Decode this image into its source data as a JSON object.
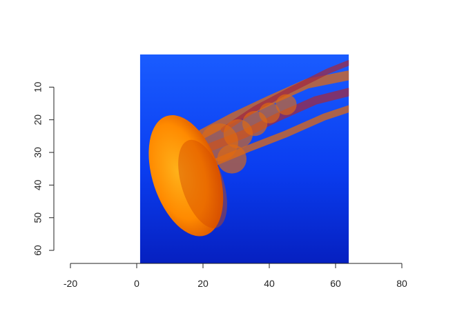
{
  "chart_data": {
    "type": "image",
    "image_description": "jellyfish",
    "xlim": [
      -20,
      80
    ],
    "ylim": [
      64,
      0
    ],
    "image_extent": {
      "x": [
        1,
        64
      ],
      "y": [
        0,
        64
      ]
    },
    "x_ticks": [
      -20,
      0,
      20,
      40,
      60,
      80
    ],
    "x_tick_labels": [
      "-20",
      "0",
      "20",
      "40",
      "60",
      "80"
    ],
    "y_ticks": [
      10,
      20,
      30,
      40,
      50,
      60
    ],
    "y_tick_labels": [
      "10",
      "20",
      "30",
      "40",
      "50",
      "60"
    ],
    "y_axis_reversed": true,
    "title": "",
    "xlabel": "",
    "ylabel": "",
    "colors": {
      "water_top": "#1a5cff",
      "water_mid": "#0a3df0",
      "water_bottom": "#0620c0",
      "bell_light": "#ffb21a",
      "bell_mid": "#ff8a00",
      "bell_dark": "#d24a00",
      "tentacle": "#e06a10",
      "tentacle_dark": "#a02a40"
    }
  }
}
